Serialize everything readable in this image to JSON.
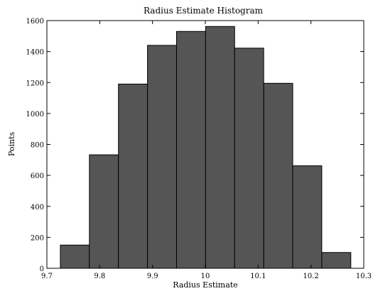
{
  "chart_data": {
    "type": "bar",
    "title": "Radius Estimate Histogram",
    "xlabel": "Radius Estimate",
    "ylabel": "Points",
    "xlim": [
      9.7,
      10.3
    ],
    "ylim": [
      0,
      1600
    ],
    "x_ticks": [
      "9.7",
      "9.8",
      "9.9",
      "10",
      "10.1",
      "10.2",
      "10.3"
    ],
    "y_ticks": [
      "0",
      "200",
      "400",
      "600",
      "800",
      "1000",
      "1200",
      "1400",
      "1600"
    ],
    "bin_edges": [
      9.7255,
      9.7805,
      9.8355,
      9.8905,
      9.9455,
      10.0005,
      10.0555,
      10.1105,
      10.1655,
      10.2205,
      10.2755
    ],
    "values": [
      150,
      733,
      1190,
      1440,
      1530,
      1562,
      1422,
      1195,
      662,
      102
    ],
    "bar_color": "#555555",
    "grid": false
  }
}
